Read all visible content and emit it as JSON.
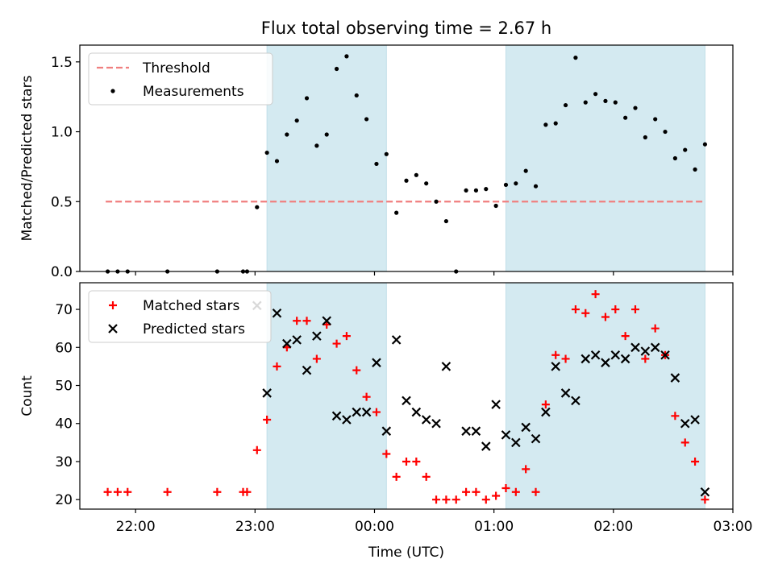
{
  "figure": {
    "title": "Flux total observing time = 2.67 h"
  },
  "chart_data": [
    {
      "type": "scatter",
      "ylabel": "Matched/Predicted stars",
      "xlabel": "",
      "xlim": [
        "21:32",
        "03:00"
      ],
      "ylim": [
        0,
        1.62
      ],
      "yticks": [
        0.0,
        0.5,
        1.0,
        1.5
      ],
      "ytick_labels": [
        "0.0",
        "0.5",
        "1.0",
        "1.5"
      ],
      "legend_location": "upper-left",
      "shaded_intervals": [
        [
          "23:06",
          "00:06"
        ],
        [
          "01:06",
          "02:46"
        ]
      ],
      "series": [
        {
          "name": "Threshold",
          "style": "dashed-line",
          "color": "#f07f7f",
          "x": [
            "21:45",
            "02:46"
          ],
          "y": [
            0.5,
            0.5
          ]
        },
        {
          "name": "Measurements",
          "style": "dot",
          "color": "#000000",
          "x": [
            "21:46",
            "21:51",
            "21:56",
            "22:16",
            "22:41",
            "22:54",
            "22:56",
            "23:01",
            "23:06",
            "23:11",
            "23:16",
            "23:21",
            "23:26",
            "23:31",
            "23:36",
            "23:41",
            "23:46",
            "23:51",
            "23:56",
            "00:01",
            "00:06",
            "00:11",
            "00:16",
            "00:21",
            "00:26",
            "00:31",
            "00:36",
            "00:41",
            "00:46",
            "00:51",
            "00:56",
            "01:01",
            "01:06",
            "01:11",
            "01:16",
            "01:21",
            "01:26",
            "01:31",
            "01:36",
            "01:41",
            "01:46",
            "01:51",
            "01:56",
            "02:01",
            "02:06",
            "02:11",
            "02:16",
            "02:21",
            "02:26",
            "02:31",
            "02:36",
            "02:41",
            "02:46"
          ],
          "y": [
            0.0,
            0.0,
            0.0,
            0.0,
            0.0,
            0.0,
            0.0,
            0.46,
            0.85,
            0.79,
            0.98,
            1.08,
            1.24,
            0.9,
            0.98,
            1.45,
            1.54,
            1.26,
            1.09,
            0.77,
            0.84,
            0.42,
            0.65,
            0.69,
            0.63,
            0.5,
            0.36,
            0.0,
            0.58,
            0.58,
            0.59,
            0.47,
            0.62,
            0.63,
            0.72,
            0.61,
            1.05,
            1.06,
            1.19,
            1.53,
            1.21,
            1.27,
            1.22,
            1.21,
            1.1,
            1.17,
            0.96,
            1.09,
            1.0,
            0.81,
            0.87,
            0.73,
            0.91
          ]
        }
      ]
    },
    {
      "type": "scatter",
      "ylabel": "Count",
      "xlabel": "Time (UTC)",
      "xlim": [
        "21:32",
        "03:00"
      ],
      "ylim": [
        17.5,
        77
      ],
      "yticks": [
        20,
        30,
        40,
        50,
        60,
        70
      ],
      "ytick_labels": [
        "20",
        "30",
        "40",
        "50",
        "60",
        "70"
      ],
      "xticks": [
        "22:00",
        "23:00",
        "00:00",
        "01:00",
        "02:00",
        "03:00"
      ],
      "xtick_labels": [
        "22:00",
        "23:00",
        "00:00",
        "01:00",
        "02:00",
        "03:00"
      ],
      "legend_location": "upper-left",
      "shaded_intervals": [
        [
          "23:06",
          "00:06"
        ],
        [
          "01:06",
          "02:46"
        ]
      ],
      "series": [
        {
          "name": "Matched stars",
          "marker": "plus",
          "color": "#ff0000",
          "x": [
            "21:46",
            "21:51",
            "21:56",
            "22:16",
            "22:41",
            "22:54",
            "22:56",
            "23:01",
            "23:06",
            "23:11",
            "23:16",
            "23:21",
            "23:26",
            "23:31",
            "23:36",
            "23:41",
            "23:46",
            "23:51",
            "23:56",
            "00:01",
            "00:06",
            "00:11",
            "00:16",
            "00:21",
            "00:26",
            "00:31",
            "00:36",
            "00:41",
            "00:46",
            "00:51",
            "00:56",
            "01:01",
            "01:06",
            "01:11",
            "01:16",
            "01:21",
            "01:26",
            "01:31",
            "01:36",
            "01:41",
            "01:46",
            "01:51",
            "01:56",
            "02:01",
            "02:06",
            "02:11",
            "02:16",
            "02:21",
            "02:26",
            "02:31",
            "02:36",
            "02:41",
            "02:46"
          ],
          "y": [
            22,
            22,
            22,
            22,
            22,
            22,
            22,
            33,
            41,
            55,
            60,
            67,
            67,
            57,
            66,
            61,
            63,
            54,
            47,
            43,
            32,
            26,
            30,
            30,
            26,
            20,
            20,
            20,
            22,
            22,
            20,
            21,
            23,
            22,
            28,
            22,
            45,
            58,
            57,
            70,
            69,
            74,
            68,
            70,
            63,
            70,
            57,
            65,
            58,
            42,
            35,
            30,
            20
          ]
        },
        {
          "name": "Predicted stars",
          "marker": "x",
          "color": "#000000",
          "x": [
            "23:01",
            "23:06",
            "23:11",
            "23:16",
            "23:21",
            "23:26",
            "23:31",
            "23:36",
            "23:41",
            "23:46",
            "23:51",
            "23:56",
            "00:01",
            "00:06",
            "00:11",
            "00:16",
            "00:21",
            "00:26",
            "00:31",
            "00:36",
            "00:46",
            "00:51",
            "00:56",
            "01:01",
            "01:06",
            "01:11",
            "01:16",
            "01:21",
            "01:26",
            "01:31",
            "01:36",
            "01:41",
            "01:46",
            "01:51",
            "01:56",
            "02:01",
            "02:06",
            "02:11",
            "02:16",
            "02:21",
            "02:26",
            "02:31",
            "02:36",
            "02:41",
            "02:46"
          ],
          "y": [
            71,
            48,
            69,
            61,
            62,
            54,
            63,
            67,
            42,
            41,
            43,
            43,
            56,
            38,
            62,
            46,
            43,
            41,
            40,
            55,
            38,
            38,
            34,
            45,
            37,
            35,
            39,
            36,
            43,
            55,
            48,
            46,
            57,
            58,
            56,
            58,
            57,
            60,
            59,
            60,
            58,
            52,
            40,
            41,
            22
          ]
        }
      ]
    }
  ]
}
